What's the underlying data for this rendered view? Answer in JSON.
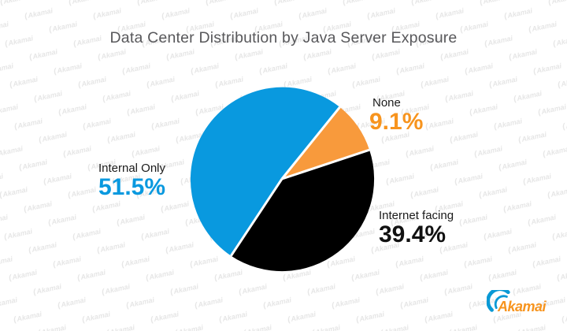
{
  "watermark": {
    "text": "Akamai"
  },
  "logo": {
    "brand": "Akamai"
  },
  "chart_data": {
    "type": "pie",
    "title": "Data Center Distribution by Java Server Exposure",
    "unit": "%",
    "legend": "none",
    "direction": "clockwise",
    "start_angle_deg": 213.5,
    "gap_color": "#FFFFFF",
    "slices": [
      {
        "label": "Internal Only",
        "value": 51.5,
        "display": "51.5%",
        "color": "#0999DF",
        "text_color": "#0999DF"
      },
      {
        "label": "None",
        "value": 9.1,
        "display": "9.1%",
        "color": "#F89A3C",
        "text_color": "#F7941E"
      },
      {
        "label": "Internet facing",
        "value": 39.4,
        "display": "39.4%",
        "color": "#000000",
        "text_color": "#111111"
      }
    ]
  }
}
